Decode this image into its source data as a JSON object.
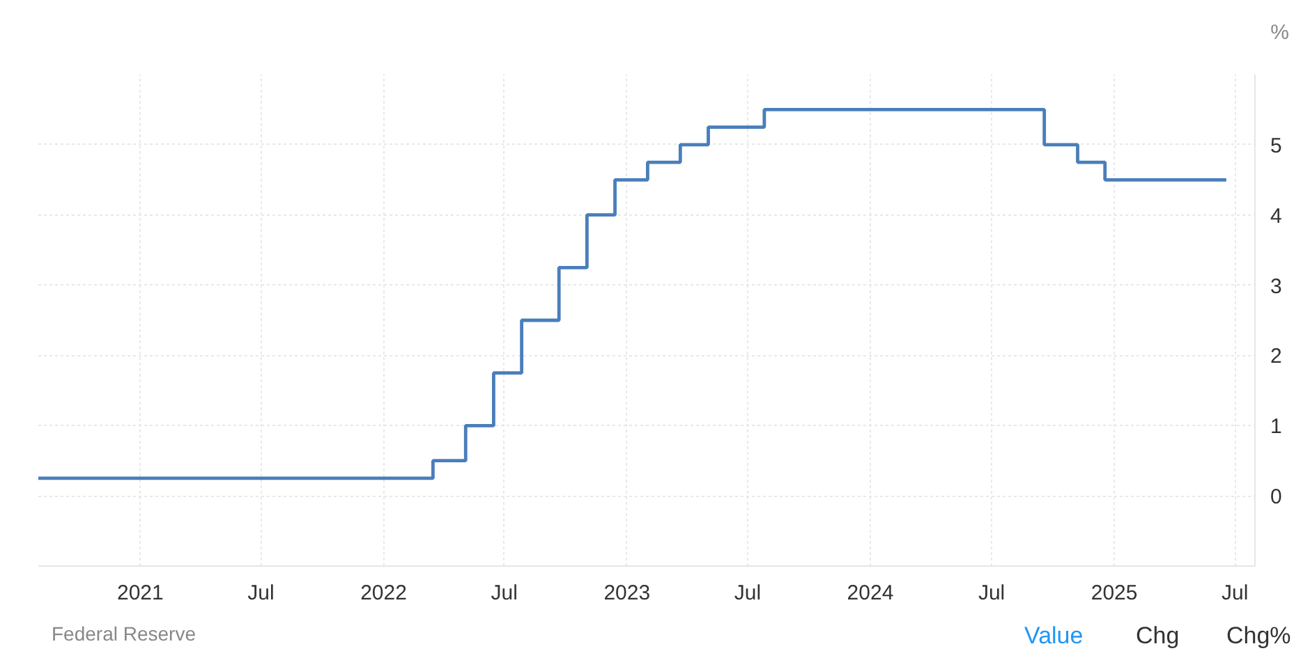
{
  "chart_data": {
    "type": "step",
    "ylabel": "%",
    "x": [
      "2020-08-01",
      "2022-03-16",
      "2022-05-04",
      "2022-06-15",
      "2022-07-27",
      "2022-09-21",
      "2022-11-02",
      "2022-12-14",
      "2023-02-01",
      "2023-03-22",
      "2023-05-03",
      "2023-07-26",
      "2024-09-18",
      "2024-11-07",
      "2024-12-18",
      "2025-06-18"
    ],
    "series": [
      {
        "color": "#4a7ebb",
        "values": [
          0.25,
          0.5,
          1.0,
          1.75,
          2.5,
          3.25,
          4.0,
          4.5,
          4.75,
          5.0,
          5.25,
          5.5,
          5.0,
          4.75,
          4.5,
          4.5
        ]
      }
    ],
    "xlim": [
      "2020-08-01",
      "2025-07-31"
    ],
    "xticks": [
      {
        "value": "2021-01-01",
        "label": "2021"
      },
      {
        "value": "2021-07-01",
        "label": "Jul"
      },
      {
        "value": "2022-01-01",
        "label": "2022"
      },
      {
        "value": "2022-07-01",
        "label": "Jul"
      },
      {
        "value": "2023-01-01",
        "label": "2023"
      },
      {
        "value": "2023-07-01",
        "label": "Jul"
      },
      {
        "value": "2024-01-01",
        "label": "2024"
      },
      {
        "value": "2024-07-01",
        "label": "Jul"
      },
      {
        "value": "2025-01-01",
        "label": "2025"
      },
      {
        "value": "2025-07-01",
        "label": "Jul"
      }
    ],
    "ylim": [
      -1,
      6
    ],
    "yticks": [
      0,
      1,
      2,
      3,
      4,
      5
    ],
    "grid": true,
    "marker": "none",
    "line_style": "solid",
    "annotations": [
      "Federal Reserve",
      "Value",
      "Chg",
      "Chg%"
    ]
  }
}
